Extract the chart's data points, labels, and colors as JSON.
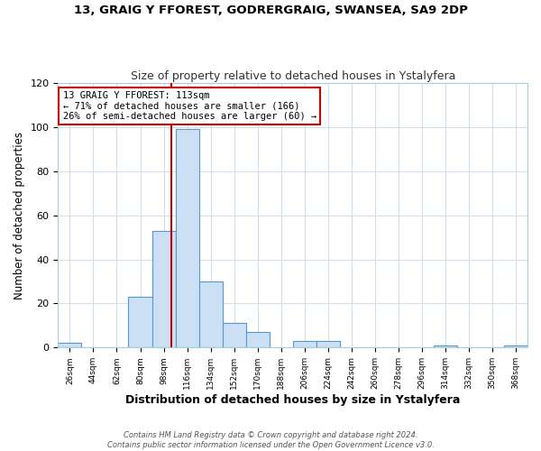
{
  "title": "13, GRAIG Y FFOREST, GODRERGRAIG, SWANSEA, SA9 2DP",
  "subtitle": "Size of property relative to detached houses in Ystalyfera",
  "xlabel": "Distribution of detached houses by size in Ystalyfera",
  "ylabel": "Number of detached properties",
  "bin_edges": [
    26,
    44,
    62,
    80,
    98,
    116,
    134,
    152,
    170,
    188,
    206,
    224,
    242,
    260,
    278,
    296,
    314,
    332,
    350,
    368,
    386
  ],
  "bar_heights": [
    2,
    0,
    0,
    23,
    53,
    99,
    30,
    11,
    7,
    0,
    3,
    3,
    0,
    0,
    0,
    0,
    1,
    0,
    0,
    1
  ],
  "bar_color": "#cce0f5",
  "bar_edgecolor": "#5599cc",
  "vline_x": 113,
  "vline_color": "#cc0000",
  "annotation_line1": "13 GRAIG Y FFOREST: 113sqm",
  "annotation_line2": "← 71% of detached houses are smaller (166)",
  "annotation_line3": "26% of semi-detached houses are larger (60) →",
  "ylim": [
    0,
    120
  ],
  "xlim": [
    26,
    386
  ],
  "yticks": [
    0,
    20,
    40,
    60,
    80,
    100,
    120
  ],
  "footer_line1": "Contains HM Land Registry data © Crown copyright and database right 2024.",
  "footer_line2": "Contains public sector information licensed under the Open Government Licence v3.0.",
  "background_color": "#ffffff",
  "grid_color": "#ccddee"
}
